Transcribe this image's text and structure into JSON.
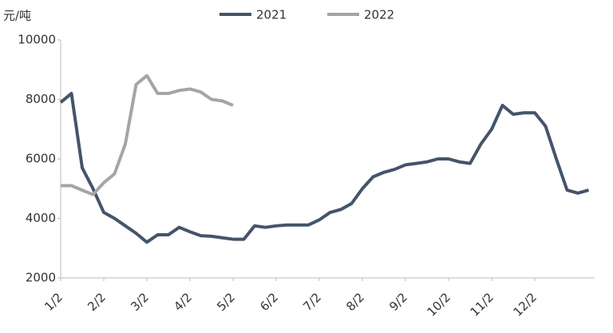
{
  "chart_data": {
    "type": "line",
    "y_label": "元/吨",
    "categories": [
      "1/2",
      null,
      null,
      null,
      "2/2",
      null,
      null,
      null,
      "3/2",
      null,
      null,
      null,
      "4/2",
      null,
      null,
      null,
      "5/2",
      null,
      null,
      null,
      "6/2",
      null,
      null,
      null,
      "7/2",
      null,
      null,
      null,
      "8/2",
      null,
      null,
      null,
      "9/2",
      null,
      null,
      null,
      "10/2",
      null,
      null,
      null,
      "11/2",
      null,
      null,
      null,
      "12/2",
      null,
      null,
      null,
      null,
      null
    ],
    "series": [
      {
        "name": "2021",
        "color": "#44546a",
        "values": [
          7900,
          8200,
          5700,
          5000,
          4200,
          4000,
          3750,
          3500,
          3200,
          3450,
          3450,
          3700,
          3550,
          3420,
          3400,
          3350,
          3300,
          3300,
          3750,
          3700,
          3750,
          3780,
          3780,
          3780,
          3950,
          4200,
          4300,
          4500,
          5000,
          5400,
          5550,
          5650,
          5800,
          5850,
          5900,
          6000,
          6000,
          5900,
          5850,
          6500,
          7000,
          7800,
          7500,
          7550,
          7550,
          7100,
          6000,
          4950,
          4850,
          4950
        ]
      },
      {
        "name": "2022",
        "color": "#a5a5a5",
        "values": [
          5100,
          5100,
          4950,
          4800,
          5200,
          5500,
          6500,
          8500,
          8800,
          8200,
          8200,
          8300,
          8350,
          8250,
          8000,
          7950,
          7800,
          null,
          null,
          null,
          null,
          null,
          null,
          null,
          null,
          null,
          null,
          null,
          null,
          null,
          null,
          null,
          null,
          null,
          null,
          null,
          null,
          null,
          null,
          null,
          null,
          null,
          null,
          null,
          null,
          null,
          null,
          null,
          null,
          null
        ]
      }
    ],
    "ylim": [
      2000,
      10000
    ],
    "yticks": [
      2000,
      4000,
      6000,
      8000,
      10000
    ],
    "legend": "top"
  }
}
